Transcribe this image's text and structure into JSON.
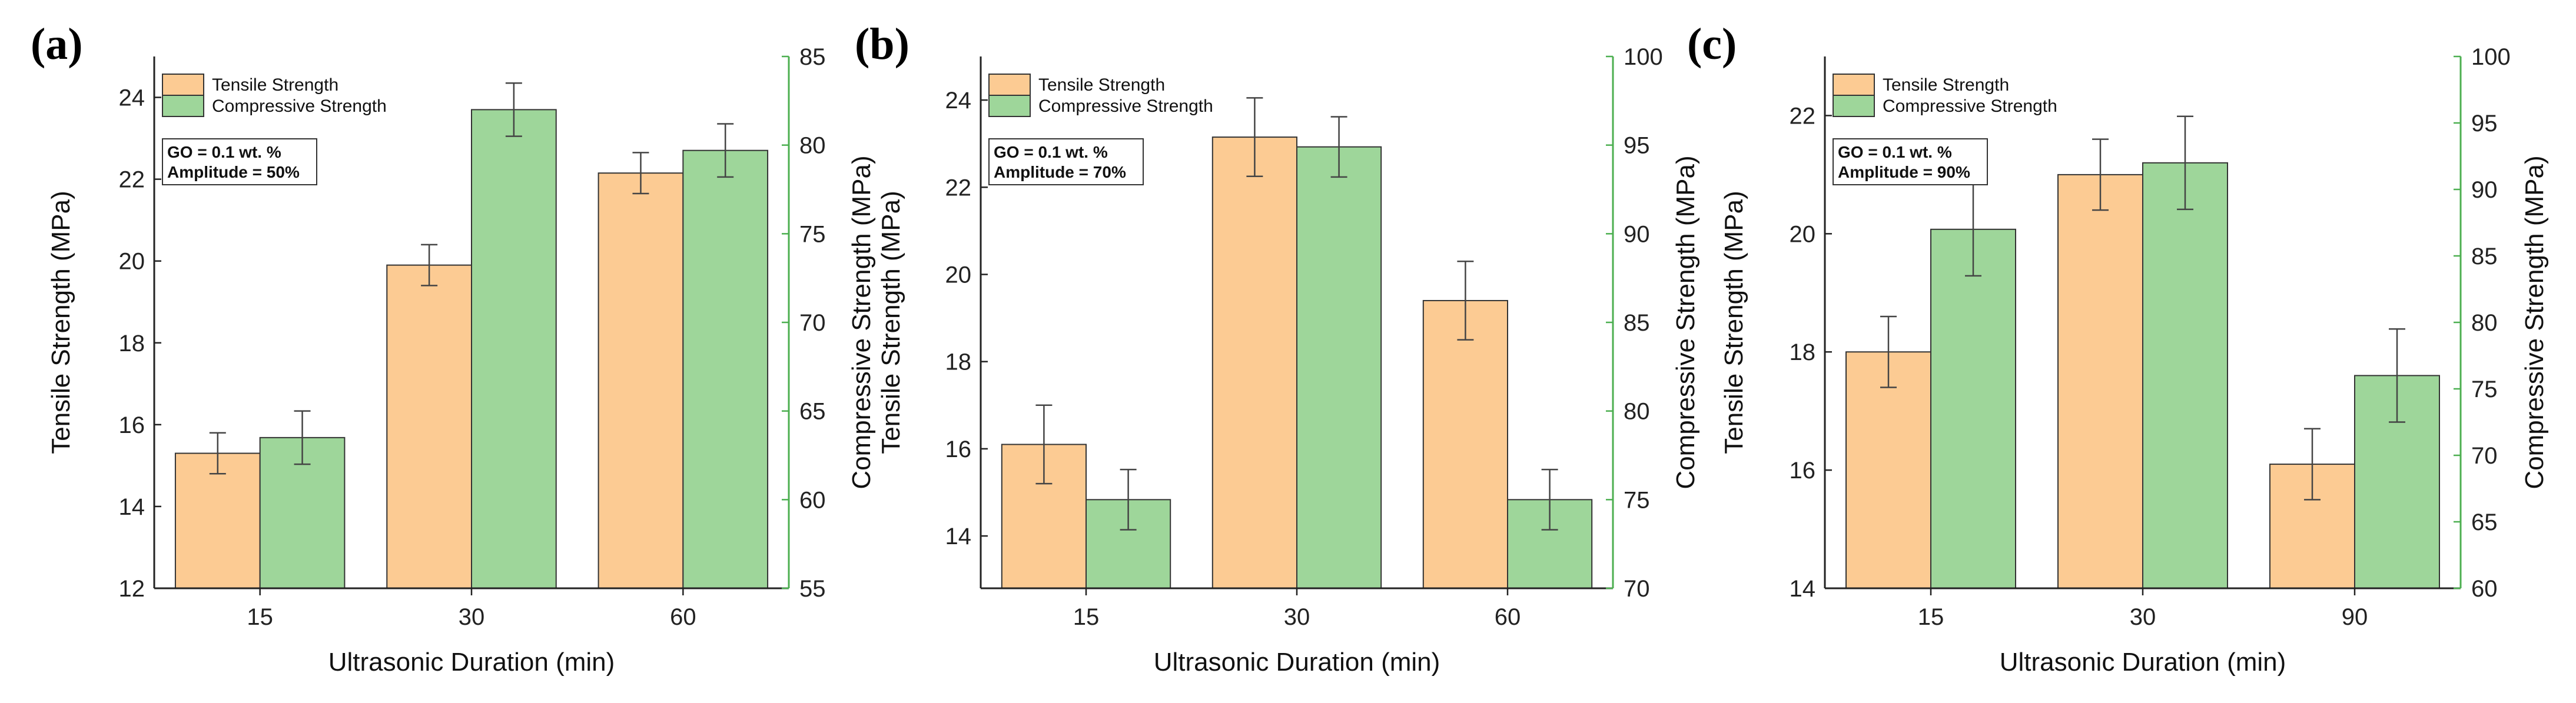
{
  "chart_data": [
    {
      "type": "bar",
      "panel_label": "(a)",
      "categories": [
        "15",
        "30",
        "60"
      ],
      "xlabel": "Ultrasonic Duration (min)",
      "ylabel_left": "Tensile Strength (MPa)",
      "ylabel_right": "Compressive Strength (MPa)",
      "ylim_left": [
        12,
        25
      ],
      "yticks_left": [
        12,
        14,
        16,
        18,
        20,
        22,
        24
      ],
      "ylim_right": [
        55,
        85
      ],
      "yticks_right": [
        55,
        60,
        65,
        70,
        75,
        80,
        85
      ],
      "legend": [
        "Tensile Strength",
        "Compressive Strength"
      ],
      "annotations": [
        "GO = 0.1 wt. %",
        "Amplitude = 50%"
      ],
      "series": [
        {
          "name": "Tensile Strength",
          "axis": "left",
          "color": "#fccb93",
          "values": [
            15.3,
            19.9,
            22.15
          ],
          "errors": [
            0.5,
            0.5,
            0.5
          ]
        },
        {
          "name": "Compressive Strength",
          "axis": "right",
          "color": "#9ed69a",
          "values": [
            63.5,
            82.0,
            79.7
          ],
          "errors": [
            1.5,
            1.5,
            1.5
          ]
        }
      ]
    },
    {
      "type": "bar",
      "panel_label": "(b)",
      "categories": [
        "15",
        "30",
        "60"
      ],
      "xlabel": "Ultrasonic Duration (min)",
      "ylabel_left": "Tensile Strength (MPa)",
      "ylabel_right": "Compressive Strength (MPa)",
      "ylim_left": [
        12.8,
        25
      ],
      "yticks_left": [
        14,
        16,
        18,
        20,
        22,
        24
      ],
      "ylim_right": [
        70,
        100
      ],
      "yticks_right": [
        70,
        75,
        80,
        85,
        90,
        95,
        100
      ],
      "legend": [
        "Tensile Strength",
        "Compressive Strength"
      ],
      "annotations": [
        "GO = 0.1 wt. %",
        "Amplitude = 70%"
      ],
      "series": [
        {
          "name": "Tensile Strength",
          "axis": "left",
          "color": "#fccb93",
          "values": [
            16.1,
            23.15,
            19.4
          ],
          "errors": [
            0.9,
            0.9,
            0.9
          ]
        },
        {
          "name": "Compressive Strength",
          "axis": "right",
          "color": "#9ed69a",
          "values": [
            75.0,
            94.9,
            75.0
          ],
          "errors": [
            1.7,
            1.7,
            1.7
          ]
        }
      ]
    },
    {
      "type": "bar",
      "panel_label": "(c)",
      "categories": [
        "15",
        "30",
        "90"
      ],
      "xlabel": "Ultrasonic Duration (min)",
      "ylabel_left": "Tensile Strength (MPa)",
      "ylabel_right": "Compressive Strength (MPa)",
      "ylim_left": [
        14,
        23
      ],
      "yticks_left": [
        14,
        16,
        18,
        20,
        22
      ],
      "ylim_right": [
        60,
        100
      ],
      "yticks_right": [
        60,
        65,
        70,
        75,
        80,
        85,
        90,
        95,
        100
      ],
      "legend": [
        "Tensile Strength",
        "Compressive Strength"
      ],
      "annotations": [
        "GO = 0.1 wt. %",
        "Amplitude = 90%"
      ],
      "series": [
        {
          "name": "Tensile Strength",
          "axis": "left",
          "color": "#fccb93",
          "values": [
            18.0,
            21.0,
            16.1
          ],
          "errors": [
            0.6,
            0.6,
            0.6
          ]
        },
        {
          "name": "Compressive Strength",
          "axis": "right",
          "color": "#9ed69a",
          "values": [
            87.0,
            92.0,
            76.0
          ],
          "errors": [
            3.5,
            3.5,
            3.5
          ]
        }
      ]
    }
  ]
}
